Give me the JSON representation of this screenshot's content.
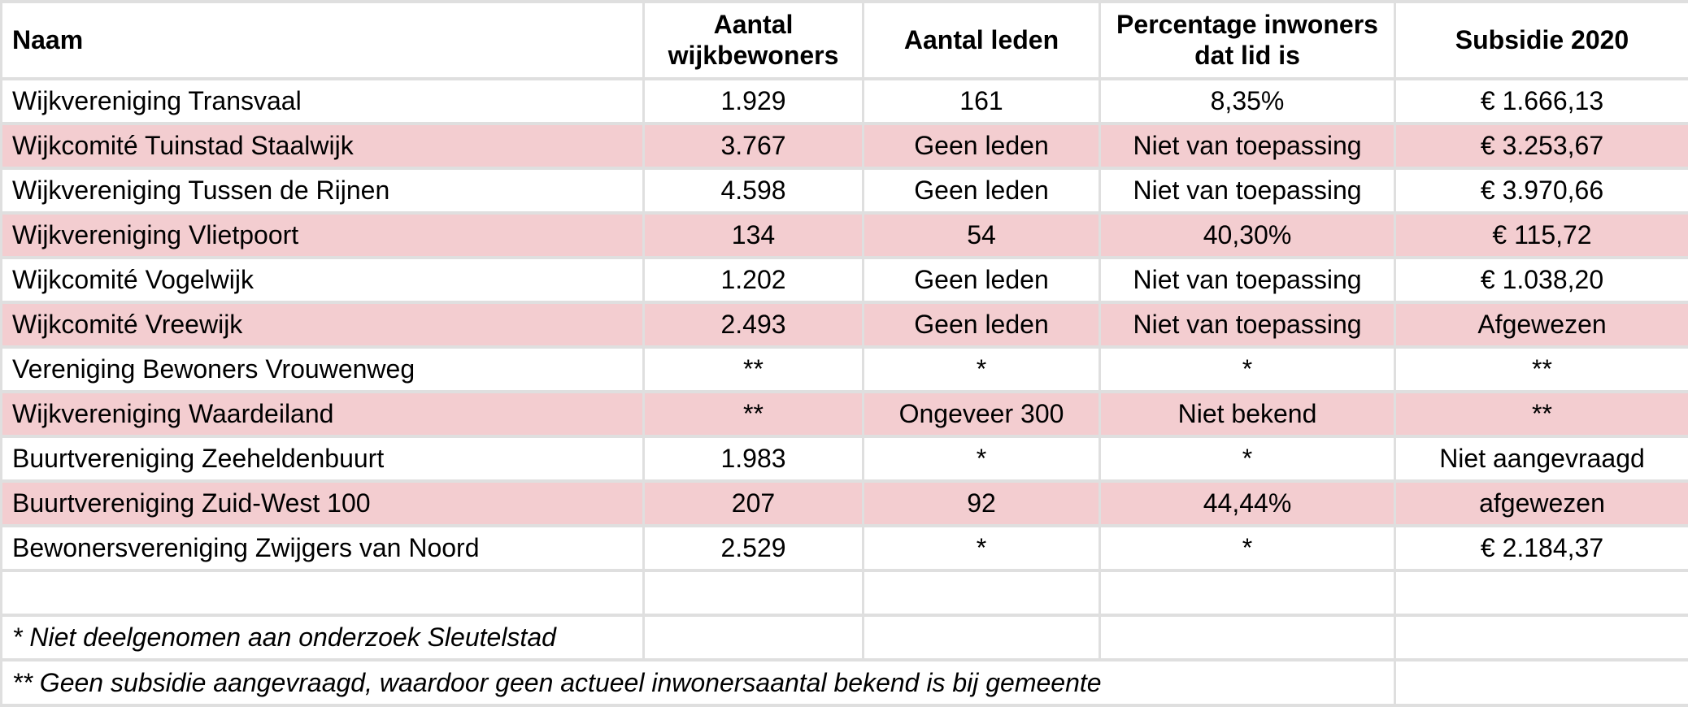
{
  "chart_data": {
    "type": "table",
    "title": "",
    "columns": [
      "Naam",
      "Aantal wijkbewoners",
      "Aantal leden",
      "Percentage inwoners dat lid is",
      "Subsidie 2020"
    ],
    "rows": [
      [
        "Wijkvereniging Transvaal",
        "1.929",
        "161",
        "8,35%",
        "€ 1.666,13"
      ],
      [
        "Wijkcomité Tuinstad Staalwijk",
        "3.767",
        "Geen leden",
        "Niet van toepassing",
        "€ 3.253,67"
      ],
      [
        "Wijkvereniging Tussen de Rijnen",
        "4.598",
        "Geen leden",
        "Niet van toepassing",
        "€ 3.970,66"
      ],
      [
        "Wijkvereniging Vlietpoort",
        "134",
        "54",
        "40,30%",
        "€ 115,72"
      ],
      [
        "Wijkcomité Vogelwijk",
        "1.202",
        "Geen leden",
        "Niet van toepassing",
        "€ 1.038,20"
      ],
      [
        "Wijkcomité Vreewijk",
        "2.493",
        "Geen leden",
        "Niet van toepassing",
        "Afgewezen"
      ],
      [
        "Vereniging Bewoners Vrouwenweg",
        "**",
        "*",
        "*",
        "**"
      ],
      [
        "Wijkvereniging Waardeiland",
        "**",
        "Ongeveer 300",
        "Niet bekend",
        "**"
      ],
      [
        "Buurtvereniging Zeeheldenbuurt",
        "1.983",
        "*",
        "*",
        "Niet aangevraagd"
      ],
      [
        "Buurtvereniging Zuid-West 100",
        "207",
        "92",
        "44,44%",
        "afgewezen"
      ],
      [
        "Bewonersvereniging Zwijgers van Noord",
        "2.529",
        "*",
        "*",
        "€ 2.184,37"
      ]
    ],
    "shaded_row_indices": [
      1,
      3,
      5,
      7,
      9
    ],
    "footnotes": [
      "* Niet deelgenomen aan onderzoek Sleutelstad",
      "** Geen subsidie aangevraagd, waardoor geen actueel inwonersaantal bekend is bij gemeente"
    ],
    "colors": {
      "shaded_row": "#f3cdd0",
      "plain_row": "#ffffff",
      "gridline": "#dddddd",
      "text": "#000000"
    },
    "layout": {
      "legend": "none",
      "grid": "on"
    }
  }
}
